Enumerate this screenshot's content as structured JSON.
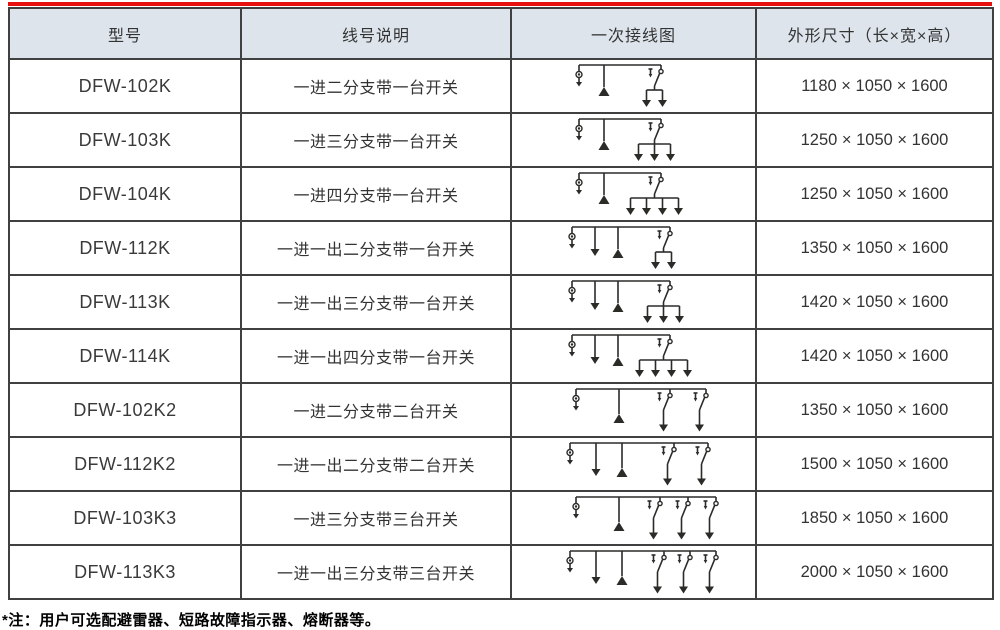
{
  "accent_color": "#e8100f",
  "header_bg_color": "#dde4ec",
  "border_color": "#404040",
  "table": {
    "columns": [
      "型号",
      "线号说明",
      "一次接线图",
      "外形尺寸（长×宽×高）"
    ],
    "rows": [
      {
        "model": "DFW-102K",
        "desc": "一进二分支带一台开关",
        "dims": "1180 × 1050 × 1600",
        "diagram": {
          "out": false,
          "branches": 2,
          "switches": 1
        }
      },
      {
        "model": "DFW-103K",
        "desc": "一进三分支带一台开关",
        "dims": "1250 × 1050 × 1600",
        "diagram": {
          "out": false,
          "branches": 3,
          "switches": 1
        }
      },
      {
        "model": "DFW-104K",
        "desc": "一进四分支带一台开关",
        "dims": "1250 × 1050 × 1600",
        "diagram": {
          "out": false,
          "branches": 4,
          "switches": 1
        }
      },
      {
        "model": "DFW-112K",
        "desc": "一进一出二分支带一台开关",
        "dims": "1350 × 1050 × 1600",
        "diagram": {
          "out": true,
          "branches": 2,
          "switches": 1
        }
      },
      {
        "model": "DFW-113K",
        "desc": "一进一出三分支带一台开关",
        "dims": "1420 × 1050 × 1600",
        "diagram": {
          "out": true,
          "branches": 3,
          "switches": 1
        }
      },
      {
        "model": "DFW-114K",
        "desc": "一进一出四分支带一台开关",
        "dims": "1420 × 1050 × 1600",
        "diagram": {
          "out": true,
          "branches": 4,
          "switches": 1
        }
      },
      {
        "model": "DFW-102K2",
        "desc": "一进二分支带二台开关",
        "dims": "1350 × 1050 × 1600",
        "diagram": {
          "out": false,
          "branches": 2,
          "switches": 2
        }
      },
      {
        "model": "DFW-112K2",
        "desc": "一进一出二分支带二台开关",
        "dims": "1500 × 1050 × 1600",
        "diagram": {
          "out": true,
          "branches": 2,
          "switches": 2
        }
      },
      {
        "model": "DFW-103K3",
        "desc": "一进三分支带三台开关",
        "dims": "1850 × 1050 × 1600",
        "diagram": {
          "out": false,
          "branches": 3,
          "switches": 3
        }
      },
      {
        "model": "DFW-113K3",
        "desc": "一进一出三分支带三台开关",
        "dims": "2000 × 1050 × 1600",
        "diagram": {
          "out": true,
          "branches": 3,
          "switches": 3
        }
      }
    ]
  },
  "note": "*注：用户可选配避雷器、短路故障指示器、熔断器等。"
}
